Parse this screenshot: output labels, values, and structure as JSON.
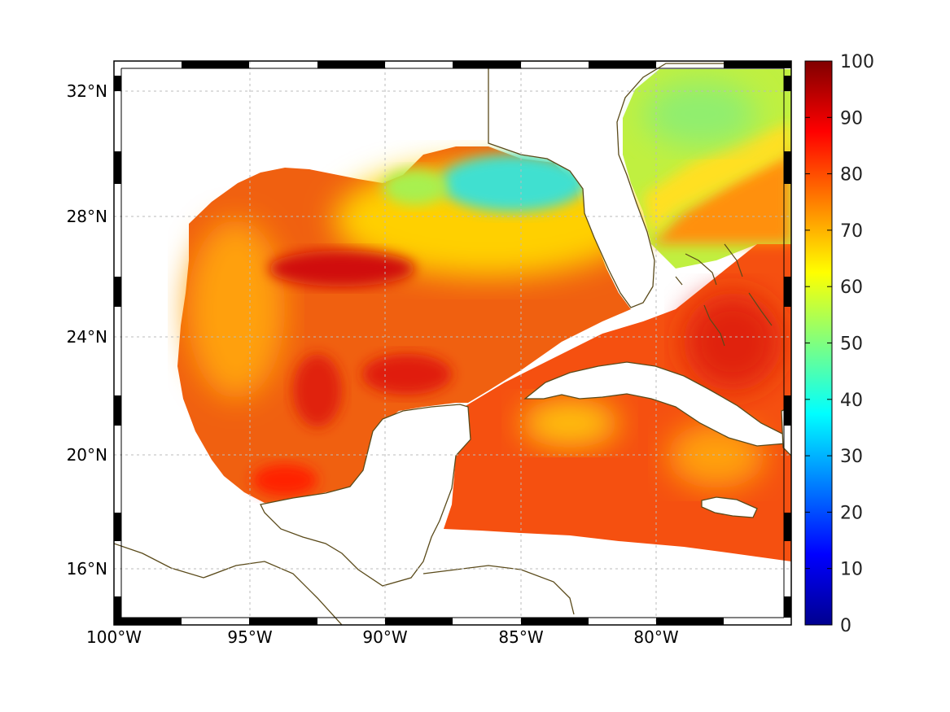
{
  "map": {
    "lon_range": [
      -100,
      -75
    ],
    "lat_range": [
      14,
      33
    ],
    "grid": true,
    "frame": "checkered-black-white",
    "x_tick_labels": [
      "100°W",
      "95°W",
      "90°W",
      "85°W",
      "80°W"
    ],
    "x_tick_values": [
      -100,
      -95,
      -90,
      -85,
      -80
    ],
    "y_tick_labels": [
      "32°N",
      "28°N",
      "24°N",
      "20°N",
      "16°N"
    ],
    "y_tick_values": [
      32,
      28,
      24,
      20,
      16
    ],
    "land_color": "#ffffff",
    "coast_color": "#5a4a1a",
    "colormap": "jet"
  },
  "colorbar": {
    "range": [
      0,
      100
    ],
    "ticks": [
      "0",
      "10",
      "20",
      "30",
      "40",
      "50",
      "60",
      "70",
      "80",
      "90",
      "100"
    ],
    "tick_values": [
      0,
      10,
      20,
      30,
      40,
      50,
      60,
      70,
      80,
      90,
      100
    ]
  },
  "field_regions": [
    {
      "region": "western-gulf",
      "value": 78
    },
    {
      "region": "northern-gulf-shelf",
      "value": 60
    },
    {
      "region": "apalachee-bay",
      "value": 42
    },
    {
      "region": "central-gulf-ridge",
      "value": 90
    },
    {
      "region": "caribbean",
      "value": 82
    },
    {
      "region": "atlantic-north-of-florida",
      "value": 55
    },
    {
      "region": "bahamas",
      "value": 85
    }
  ]
}
